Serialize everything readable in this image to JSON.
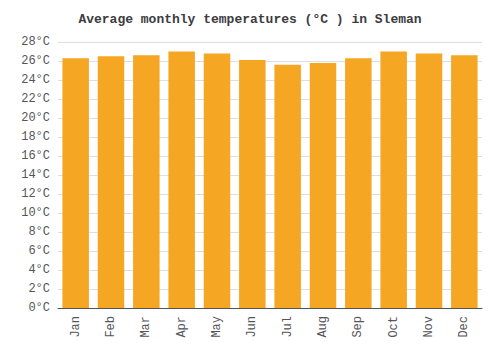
{
  "chart_data": {
    "type": "bar",
    "title": "Average monthly temperatures (°C ) in Sleman",
    "categories": [
      "Jan",
      "Feb",
      "Mar",
      "Apr",
      "May",
      "Jun",
      "Jul",
      "Aug",
      "Sep",
      "Oct",
      "Nov",
      "Dec"
    ],
    "values": [
      26.3,
      26.5,
      26.6,
      27.0,
      26.8,
      26.1,
      25.6,
      25.8,
      26.3,
      27.0,
      26.8,
      26.6
    ],
    "color": "#F5A623",
    "ylim": [
      0,
      28
    ],
    "yticks": [
      {
        "value": 0,
        "label": "0°C"
      },
      {
        "value": 2,
        "label": "2°C"
      },
      {
        "value": 4,
        "label": "4°C"
      },
      {
        "value": 6,
        "label": "6°C"
      },
      {
        "value": 8,
        "label": "8°C"
      },
      {
        "value": 10,
        "label": "10°C"
      },
      {
        "value": 12,
        "label": "12°C"
      },
      {
        "value": 14,
        "label": "14°C"
      },
      {
        "value": 16,
        "label": "16°C"
      },
      {
        "value": 18,
        "label": "18°C"
      },
      {
        "value": 20,
        "label": "20°C"
      },
      {
        "value": 22,
        "label": "22°C"
      },
      {
        "value": 24,
        "label": "24°C"
      },
      {
        "value": 26,
        "label": "26°C"
      },
      {
        "value": 28,
        "label": "28°C"
      }
    ],
    "grid": true
  }
}
